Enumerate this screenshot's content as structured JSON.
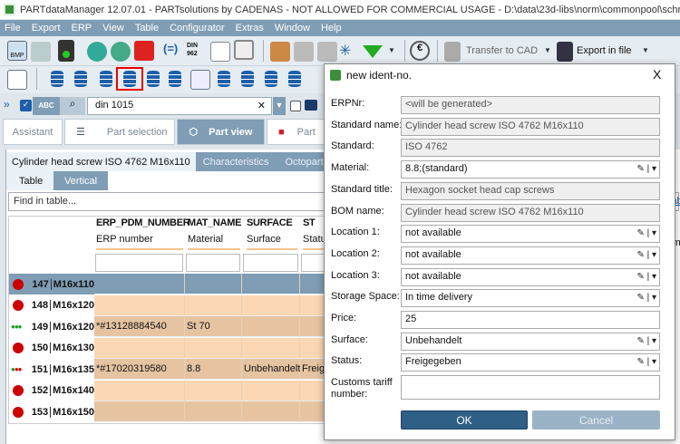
{
  "window": {
    "title": "PARTdataManager 12.07.01 - PARTsolutions by CADENAS - NOT ALLOWED FOR COMMERCIAL USAGE - D:\\data\\23d-libs\\norm\\commonpool\\schrauben\\din_en_iso"
  },
  "menu": [
    "File",
    "Export",
    "ERP",
    "View",
    "Table",
    "Configurator",
    "Extras",
    "Window",
    "Help"
  ],
  "toolbar": {
    "transfer_cad": "Transfer to CAD",
    "export_file": "Export in file",
    "bmp_label": "BMP",
    "din_label": "DIN 962"
  },
  "search": {
    "abc": "ABC",
    "value": "din 1015",
    "clear": "✕"
  },
  "tabs": [
    "Assistant",
    "Part selection",
    "Part view",
    "Part"
  ],
  "subtabs": [
    "Cylinder head screw ISO 4762 M16x110",
    "Characteristics",
    "Octopart"
  ],
  "viewtabs": [
    "Table",
    "Vertical"
  ],
  "find": {
    "placeholder": "Find in table..."
  },
  "table": {
    "columns": [
      {
        "name": "ERP_PDM_NUMBER",
        "sub": "ERP number"
      },
      {
        "name": "MAT_NAME",
        "sub": "Material"
      },
      {
        "name": "SURFACE",
        "sub": "Surface"
      },
      {
        "name": "ST",
        "sub": "Statu"
      }
    ],
    "rows": [
      {
        "n": "147",
        "size": "M16x110",
        "status": "red",
        "erp": "",
        "mat": "",
        "surf": "",
        "st": ""
      },
      {
        "n": "148",
        "size": "M16x120",
        "status": "red",
        "erp": "",
        "mat": "",
        "surf": "",
        "st": ""
      },
      {
        "n": "149",
        "size": "M16x120",
        "status": "green-dots",
        "erp": "*#13128884540",
        "mat": "St 70",
        "surf": "",
        "st": ""
      },
      {
        "n": "150",
        "size": "M16x130",
        "status": "red",
        "erp": "",
        "mat": "",
        "surf": "",
        "st": ""
      },
      {
        "n": "151",
        "size": "M16x135",
        "status": "mixed-dots",
        "erp": "*#17020319580",
        "mat": "8.8",
        "surf": "Unbehandelt",
        "st": "Freige"
      },
      {
        "n": "152",
        "size": "M16x140",
        "status": "red",
        "erp": "",
        "mat": "",
        "surf": "",
        "st": ""
      },
      {
        "n": "153",
        "size": "M16x150",
        "status": "red",
        "erp": "",
        "mat": "",
        "surf": "",
        "st": ""
      }
    ]
  },
  "right_partial": {
    "link": "iab",
    "text": "rm"
  },
  "dialog": {
    "title": "new ident-no.",
    "close": "X",
    "fields": [
      {
        "label": "ERPNr:",
        "value": "<will be generated>",
        "readonly": true
      },
      {
        "label": "Standard name:",
        "value": "Cylinder head screw ISO 4762 M16x110",
        "readonly": true
      },
      {
        "label": "Standard:",
        "value": "ISO 4762",
        "readonly": true
      },
      {
        "label": "Material:",
        "value": "8.8;(standard)",
        "dropdown": true
      },
      {
        "label": "Standard title:",
        "value": "Hexagon socket head cap screws",
        "readonly": true
      },
      {
        "label": "BOM name:",
        "value": "Cylinder head screw ISO 4762 M16x110",
        "readonly": true
      },
      {
        "label": "Location 1:",
        "value": "not available",
        "dropdown": true
      },
      {
        "label": "Location 2:",
        "value": "not available",
        "dropdown": true
      },
      {
        "label": "Location 3:",
        "value": "not available",
        "dropdown": true
      },
      {
        "label": "Storage Space:",
        "value": "In time delivery",
        "dropdown": true
      },
      {
        "label": "Price:",
        "value": "25"
      },
      {
        "label": "Surface:",
        "value": "Unbehandelt",
        "dropdown": true
      },
      {
        "label": "Status:",
        "value": "Freigegeben",
        "dropdown": true
      },
      {
        "label": "Customs tariff number:",
        "value": ""
      }
    ],
    "ok": "OK",
    "cancel": "Cancel"
  },
  "colors": {
    "menubar": "#7f9db4",
    "ok": "#2f5f85",
    "cancel": "#9ab3c6",
    "row_odd": "#e6c4a2",
    "row_even": "#fbd7b4",
    "selected": "#7f9db4"
  }
}
